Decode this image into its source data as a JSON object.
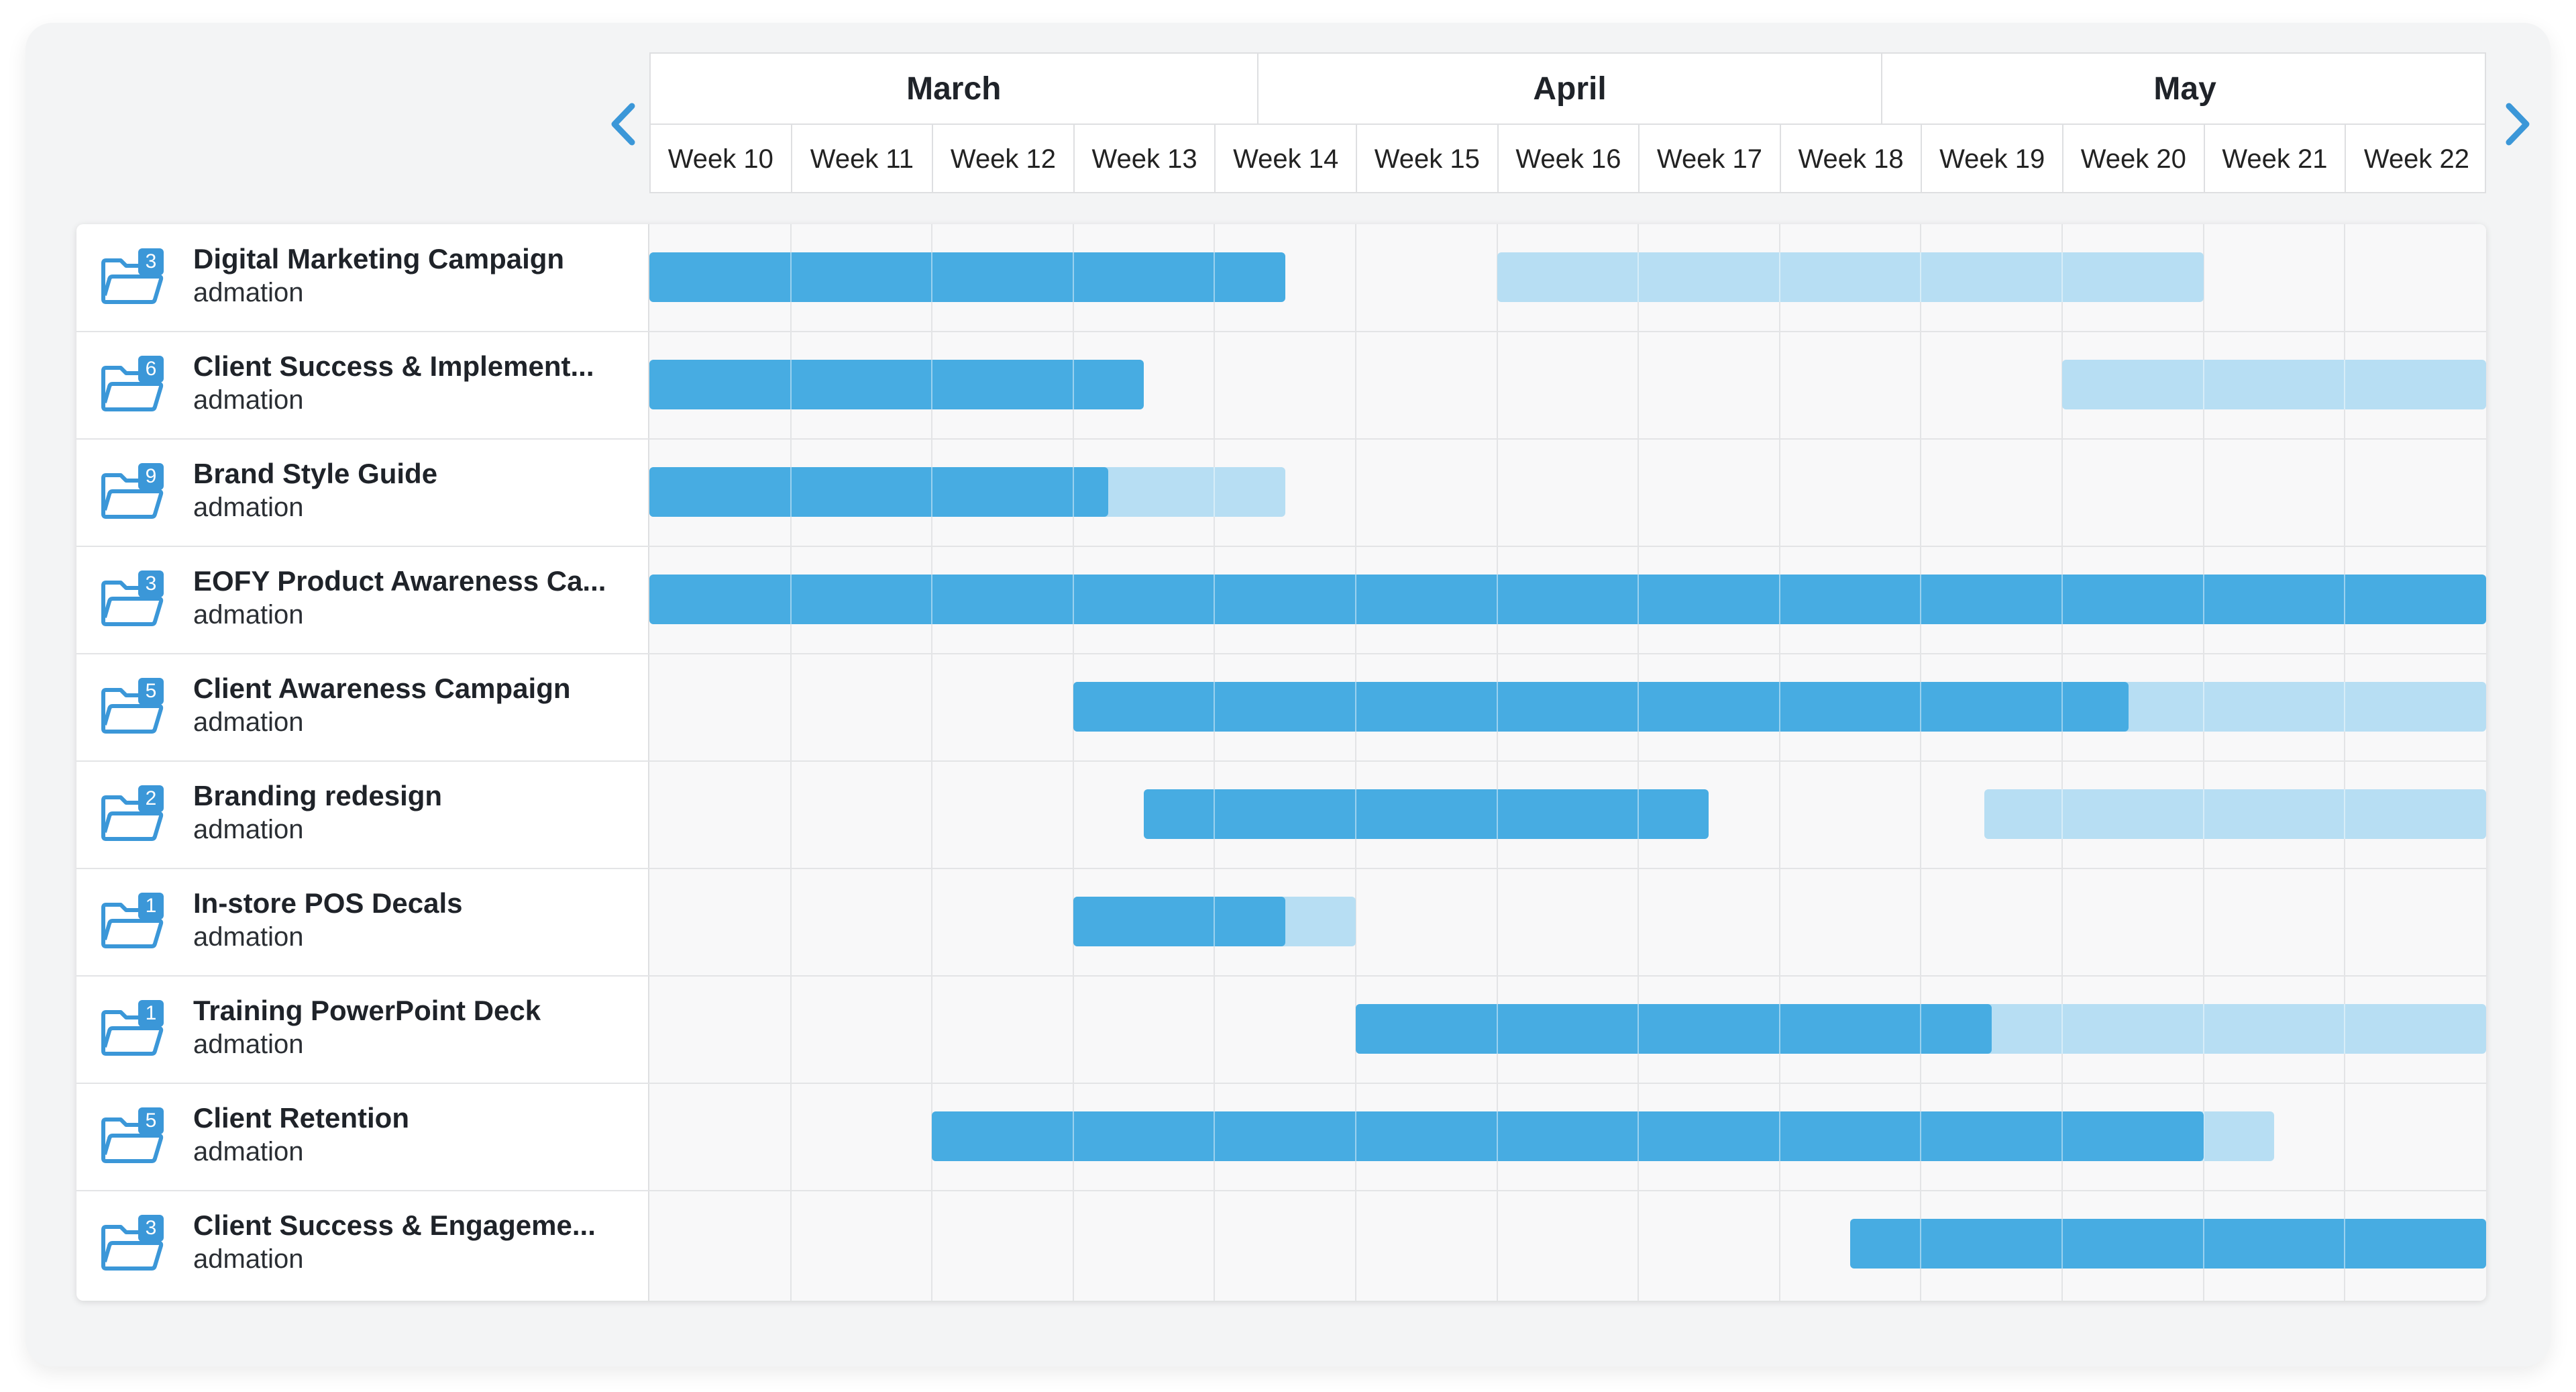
{
  "timeline": {
    "months": [
      {
        "label": "March",
        "start_week": 0,
        "span_weeks": 4.3
      },
      {
        "label": "April",
        "start_week": 4.3,
        "span_weeks": 4.42
      },
      {
        "label": "May",
        "start_week": 8.72,
        "span_weeks": 4.28
      }
    ],
    "weeks": [
      "Week 10",
      "Week 11",
      "Week 12",
      "Week 13",
      "Week 14",
      "Week 15",
      "Week 16",
      "Week 17",
      "Week 18",
      "Week 19",
      "Week 20",
      "Week 21",
      "Week 22"
    ],
    "prev_label": "previous-period",
    "next_label": "next-period"
  },
  "colors": {
    "bar_dark": "#47ace2",
    "bar_light": "#b7def3",
    "badge": "#3b97d8",
    "folder": "#3b97d8"
  },
  "projects": [
    {
      "name": "Digital Marketing Campaign",
      "client": "admation",
      "count": "3",
      "bars": [
        {
          "start": 0,
          "end": 4.5,
          "kind": "dark"
        },
        {
          "start": 6,
          "end": 11,
          "kind": "light"
        }
      ]
    },
    {
      "name": "Client Success & Implement...",
      "client": "admation",
      "count": "6",
      "bars": [
        {
          "start": 0,
          "end": 3.5,
          "kind": "dark"
        },
        {
          "start": 10,
          "end": 13,
          "kind": "light"
        }
      ]
    },
    {
      "name": "Brand Style Guide",
      "client": "admation",
      "count": "9",
      "bars": [
        {
          "start": 0,
          "end": 4.5,
          "kind": "light"
        },
        {
          "start": 0,
          "end": 3.25,
          "kind": "dark"
        }
      ]
    },
    {
      "name": "EOFY Product Awareness Ca...",
      "client": "admation",
      "count": "3",
      "bars": [
        {
          "start": 0,
          "end": 13,
          "kind": "dark"
        }
      ]
    },
    {
      "name": "Client Awareness Campaign",
      "client": "admation",
      "count": "5",
      "bars": [
        {
          "start": 3,
          "end": 13,
          "kind": "light"
        },
        {
          "start": 3,
          "end": 10.47,
          "kind": "dark"
        }
      ]
    },
    {
      "name": "Branding redesign",
      "client": "admation",
      "count": "2",
      "bars": [
        {
          "start": 3.5,
          "end": 7.5,
          "kind": "dark"
        },
        {
          "start": 9.45,
          "end": 13,
          "kind": "light"
        }
      ]
    },
    {
      "name": "In-store POS Decals",
      "client": "admation",
      "count": "1",
      "bars": [
        {
          "start": 3,
          "end": 5,
          "kind": "light"
        },
        {
          "start": 3,
          "end": 4.5,
          "kind": "dark"
        }
      ]
    },
    {
      "name": "Training PowerPoint Deck",
      "client": "admation",
      "count": "1",
      "bars": [
        {
          "start": 5,
          "end": 13,
          "kind": "light"
        },
        {
          "start": 5,
          "end": 9.5,
          "kind": "dark"
        }
      ]
    },
    {
      "name": "Client Retention",
      "client": "admation",
      "count": "5",
      "bars": [
        {
          "start": 2,
          "end": 11.5,
          "kind": "light"
        },
        {
          "start": 2,
          "end": 11,
          "kind": "dark"
        }
      ]
    },
    {
      "name": "Client Success & Engageme...",
      "client": "admation",
      "count": "3",
      "bars": [
        {
          "start": 8.5,
          "end": 13,
          "kind": "dark"
        }
      ]
    }
  ]
}
